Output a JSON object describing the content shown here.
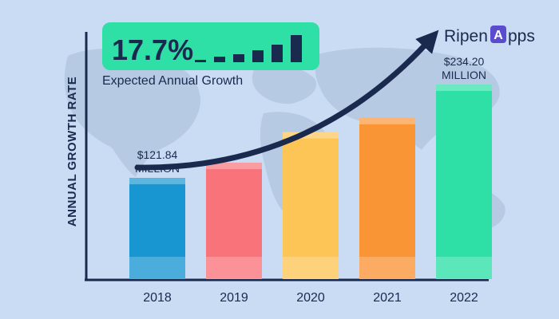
{
  "header": {
    "headline_value": "17.7%",
    "headline_caption": "Expected Annual Growth",
    "badge_color": "#2fe0a6"
  },
  "brand": {
    "logo_text_1": "Ripen",
    "logo_text_2": "pps",
    "logo_letter": "A",
    "logo_color": "#5b4bd1"
  },
  "chart_data": {
    "type": "bar",
    "title": "",
    "ylabel": "ANNUAL GROWTH RATE",
    "xlabel": "",
    "categories": [
      "2018",
      "2019",
      "2020",
      "2021",
      "2022"
    ],
    "values": [
      121.84,
      140,
      177,
      194,
      234.2
    ],
    "ylim": [
      0,
      240
    ],
    "colors": [
      "#1796d2",
      "#f8737a",
      "#fdc555",
      "#fa9536",
      "#2ee0a6"
    ],
    "data_labels": [
      {
        "index": 0,
        "line1": "$121.84",
        "line2": "MILLION"
      },
      {
        "index": 4,
        "line1": "$234.20",
        "line2": "MILLION"
      }
    ],
    "grid": false,
    "legend": "none"
  }
}
